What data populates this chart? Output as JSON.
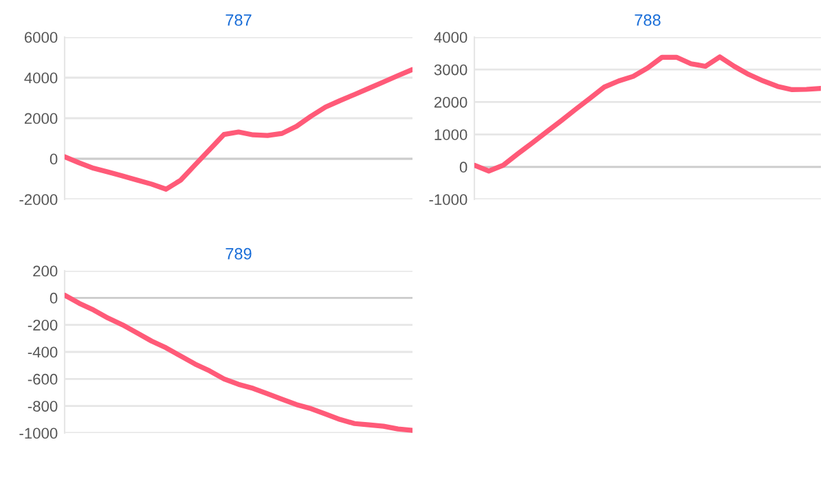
{
  "chart_data": [
    {
      "type": "line",
      "title": "787",
      "categories": [
        null,
        null,
        null,
        null,
        null,
        null,
        null,
        null,
        null,
        null,
        null,
        null,
        null,
        null,
        null,
        null,
        null,
        null,
        null,
        null,
        null,
        null,
        null,
        null,
        null
      ],
      "series": [
        {
          "color": "#ff5a78",
          "values": [
            100,
            -200,
            -470,
            -650,
            -850,
            -1050,
            -1250,
            -1500,
            -1060,
            -300,
            450,
            1200,
            1320,
            1180,
            1150,
            1250,
            1600,
            2100,
            2550,
            2870,
            3170,
            3480,
            3790,
            4100,
            4400
          ]
        }
      ],
      "ylim": [
        -2000,
        6000
      ],
      "yticks": [
        -2000,
        0,
        2000,
        4000,
        6000
      ],
      "grid": "y",
      "tick_labels": "y",
      "marker": "none"
    },
    {
      "type": "line",
      "title": "788",
      "categories": [
        null,
        null,
        null,
        null,
        null,
        null,
        null,
        null,
        null,
        null,
        null,
        null,
        null,
        null,
        null,
        null,
        null,
        null,
        null,
        null,
        null,
        null,
        null,
        null,
        null
      ],
      "series": [
        {
          "color": "#ff5a78",
          "values": [
            50,
            -130,
            50,
            400,
            735,
            1080,
            1420,
            1770,
            2110,
            2460,
            2650,
            2790,
            3050,
            3380,
            3380,
            3180,
            3100,
            3390,
            3100,
            2850,
            2650,
            2480,
            2380,
            2390,
            2420
          ]
        }
      ],
      "ylim": [
        -1000,
        4000
      ],
      "yticks": [
        -1000,
        0,
        1000,
        2000,
        3000,
        4000
      ],
      "grid": "y",
      "tick_labels": "y",
      "marker": "none"
    },
    {
      "type": "line",
      "title": "789",
      "categories": [
        null,
        null,
        null,
        null,
        null,
        null,
        null,
        null,
        null,
        null,
        null,
        null,
        null,
        null,
        null,
        null,
        null,
        null,
        null,
        null,
        null,
        null,
        null,
        null,
        null
      ],
      "series": [
        {
          "color": "#ff5a78",
          "values": [
            20,
            -40,
            -90,
            -150,
            -200,
            -260,
            -320,
            -370,
            -430,
            -490,
            -540,
            -600,
            -640,
            -670,
            -710,
            -750,
            -790,
            -820,
            -860,
            -900,
            -930,
            -940,
            -950,
            -970,
            -980
          ]
        }
      ],
      "ylim": [
        -1000,
        200
      ],
      "yticks": [
        -1000,
        -800,
        -600,
        -400,
        -200,
        0,
        200
      ],
      "grid": "y",
      "tick_labels": "y",
      "marker": "none"
    }
  ]
}
